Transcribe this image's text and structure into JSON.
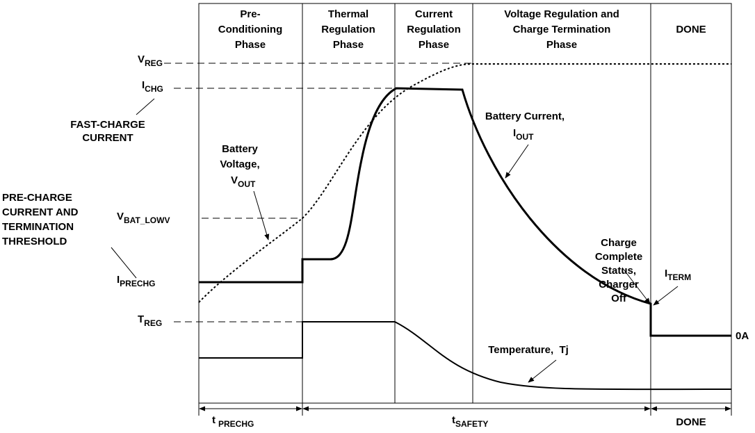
{
  "phases": [
    {
      "lines": [
        "Pre-",
        "Conditioning",
        "Phase"
      ]
    },
    {
      "lines": [
        "Thermal",
        "Regulation",
        "Phase"
      ]
    },
    {
      "lines": [
        "Current",
        "Regulation",
        "Phase"
      ]
    },
    {
      "lines": [
        "Voltage Regulation and",
        "Charge Termination",
        "Phase"
      ]
    },
    {
      "lines": [
        "DONE"
      ]
    }
  ],
  "levels": {
    "v_reg": {
      "main": "V",
      "sub": "REG"
    },
    "i_chg": {
      "main": "I",
      "sub": "CHG"
    },
    "v_bat_lowv": {
      "main": "V",
      "sub": "BAT_LOWV"
    },
    "i_prechg": {
      "main": "I",
      "sub": "PRECHG"
    },
    "t_reg": {
      "main": "T",
      "sub": "REG"
    },
    "i_term": {
      "main": "I",
      "sub": "TERM"
    },
    "zero": "0A"
  },
  "annotations": {
    "fast_charge": [
      "FAST-CHARGE",
      "CURRENT"
    ],
    "pre_charge": [
      "PRE-CHARGE",
      "CURRENT AND",
      "TERMINATION",
      "THRESHOLD"
    ],
    "battery_voltage": {
      "lines": [
        "Battery",
        "Voltage,"
      ],
      "main": "V",
      "sub": "OUT"
    },
    "battery_current": {
      "lines": [
        "Battery Current,"
      ],
      "main": "I",
      "sub": "OUT"
    },
    "charge_complete": [
      "Charge",
      "Complete",
      "Status,",
      "Charger",
      "Off"
    ],
    "temperature": "Temperature,  Tj"
  },
  "timing": {
    "prechg": {
      "main": "t",
      "sub": "PRECHG"
    },
    "safety": {
      "main": "t",
      "sub": "SAFETY"
    },
    "done": "DONE"
  }
}
